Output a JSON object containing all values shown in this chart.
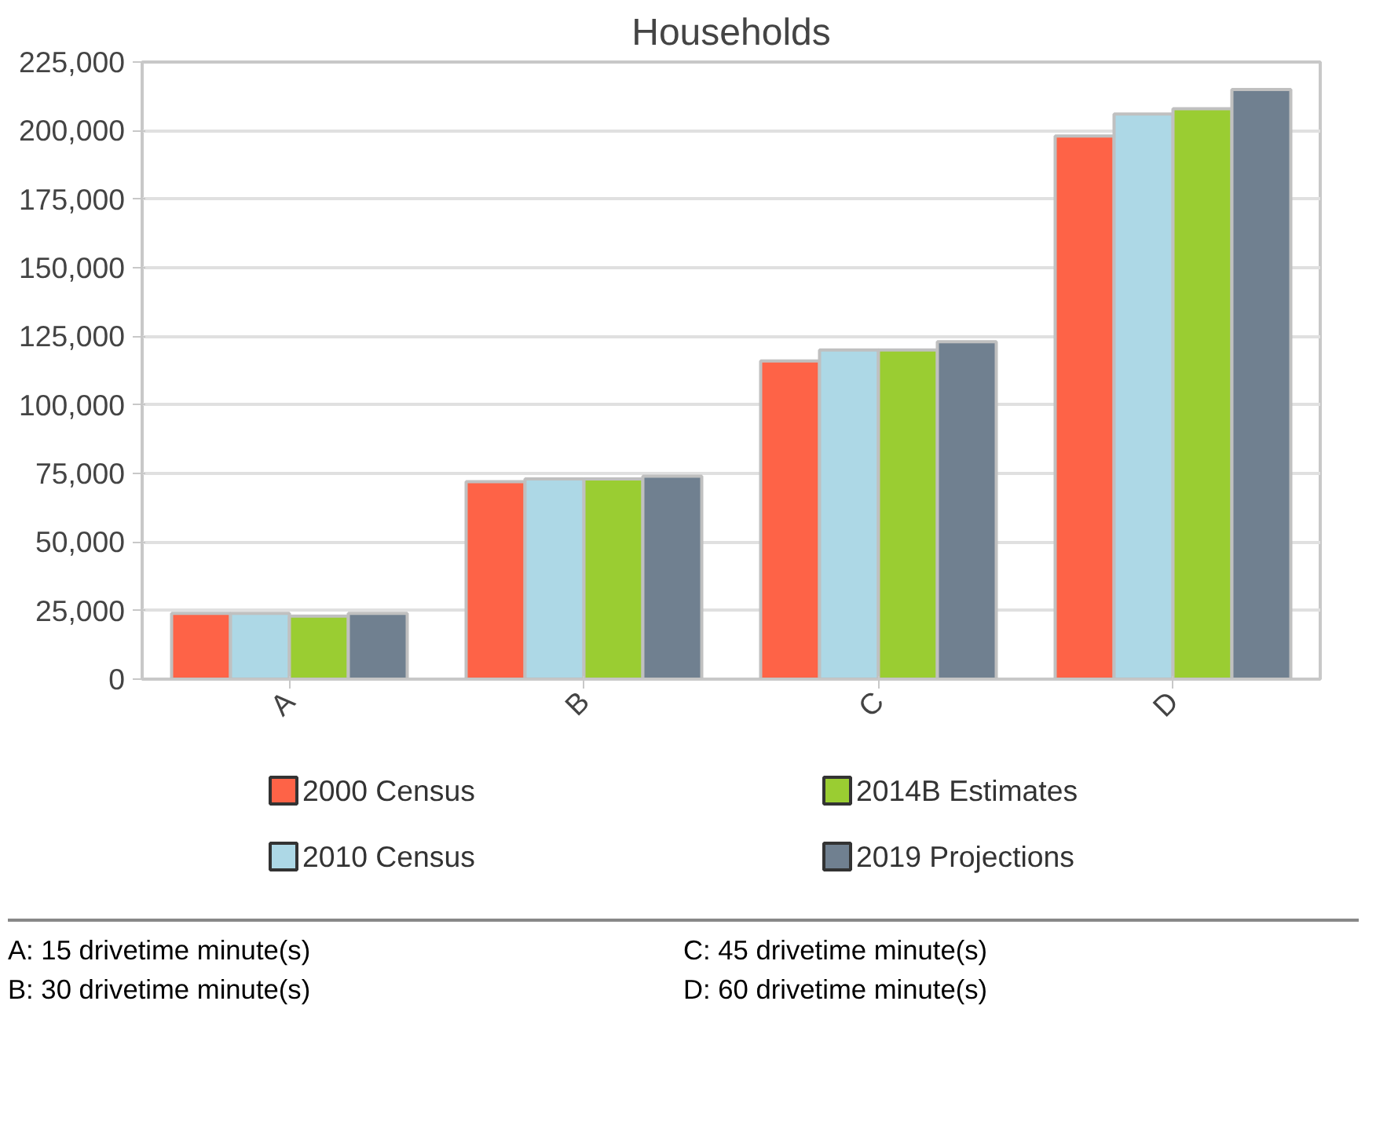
{
  "chart_data": {
    "type": "bar",
    "title": "Households",
    "categories": [
      "A",
      "B",
      "C",
      "D"
    ],
    "series": [
      {
        "name": "2000 Census",
        "color": "#fe6347",
        "values": [
          24000,
          72000,
          116000,
          198000
        ]
      },
      {
        "name": "2010 Census",
        "color": "#add8e6",
        "values": [
          24000,
          73000,
          120000,
          206000
        ]
      },
      {
        "name": "2014B Estimates",
        "color": "#9acd32",
        "values": [
          23000,
          73000,
          120000,
          208000
        ]
      },
      {
        "name": "2019 Projections",
        "color": "#708090",
        "values": [
          24000,
          74000,
          123000,
          215000
        ]
      }
    ],
    "ylim": [
      0,
      225000
    ],
    "yticks": [
      0,
      {
        "value": 25000,
        "label": "25,000"
      },
      {
        "value": 50000,
        "label": "50,000"
      },
      {
        "value": 75000,
        "label": "75,000"
      },
      {
        "value": 100000,
        "label": "100,000"
      },
      {
        "value": 125000,
        "label": "125,000"
      },
      {
        "value": 150000,
        "label": "150,000"
      },
      {
        "value": 175000,
        "label": "175,000"
      },
      {
        "value": 200000,
        "label": "200,000"
      },
      {
        "value": 225000,
        "label": "225,000"
      }
    ],
    "grid": "y",
    "legend": "bottom",
    "annotations": [
      "A: 15 drivetime minute(s)",
      "C: 45 drivetime minute(s)",
      "B: 30 drivetime minute(s)",
      "D: 60 drivetime minute(s)"
    ]
  }
}
